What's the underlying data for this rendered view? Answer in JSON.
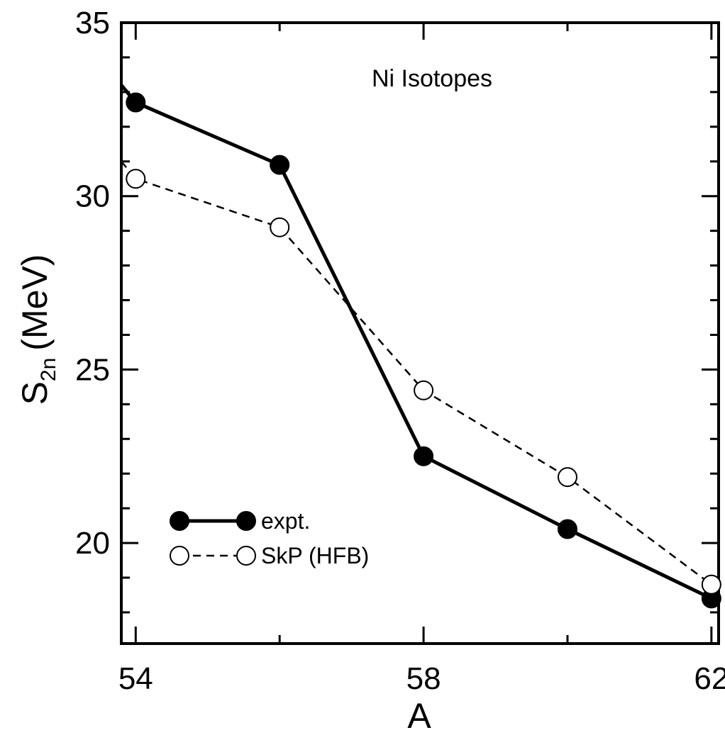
{
  "chart_data": {
    "type": "line",
    "annotation": "Ni Isotopes",
    "xlabel": "A",
    "ylabel_main": "S",
    "ylabel_sub": "2n",
    "ylabel_unit": "(MeV)",
    "xlim": [
      53.8,
      62.1
    ],
    "ylim": [
      17.1,
      35
    ],
    "xticks_major": [
      54,
      58,
      62
    ],
    "xticks_minor": [
      56,
      60
    ],
    "yticks_major": [
      20,
      25,
      30,
      35
    ],
    "yticks_minor": [
      18,
      19,
      21,
      22,
      23,
      24,
      26,
      27,
      28,
      29,
      31,
      32,
      33,
      34
    ],
    "grid": false,
    "legend_position": "bottom-left",
    "series": [
      {
        "name": "expt.",
        "style": "solid",
        "marker": "filled-circle",
        "color": "#000000",
        "x": [
          53.8,
          54,
          56,
          58,
          60,
          62
        ],
        "y": [
          33.2,
          32.7,
          30.9,
          22.5,
          20.4,
          18.4
        ],
        "markers_at": [
          54,
          56,
          58,
          60,
          62
        ]
      },
      {
        "name": "SkP (HFB)",
        "style": "dashed",
        "marker": "open-circle",
        "color": "#000000",
        "x": [
          53.8,
          54,
          56,
          58,
          60,
          62
        ],
        "y": [
          31.0,
          30.5,
          29.1,
          24.4,
          21.9,
          18.8
        ],
        "markers_at": [
          54,
          56,
          58,
          60,
          62
        ]
      }
    ]
  }
}
